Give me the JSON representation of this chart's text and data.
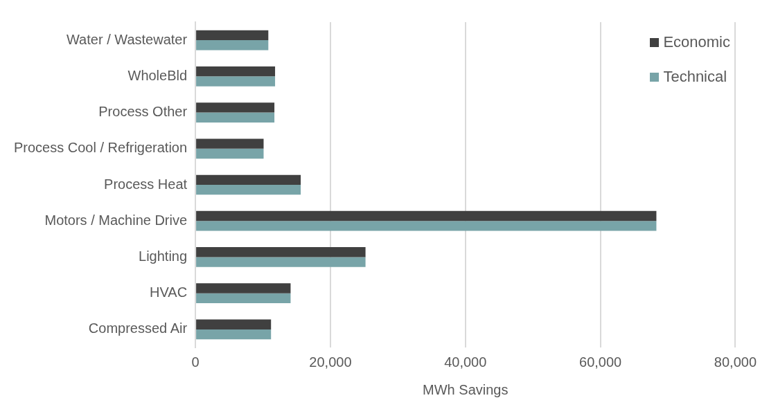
{
  "chart_data": {
    "type": "bar",
    "orientation": "horizontal",
    "xlabel": "MWh Savings",
    "categories": [
      "Water / Wastewater",
      "WholeBld",
      "Process Other",
      "Process Cool / Refrigeration",
      "Process Heat",
      "Motors / Machine Drive",
      "Lighting",
      "HVAC",
      "Compressed Air"
    ],
    "series": [
      {
        "name": "Economic",
        "color": "#404040",
        "values": [
          10800,
          11800,
          11700,
          10100,
          15600,
          68300,
          25200,
          14100,
          11200
        ]
      },
      {
        "name": "Technical",
        "color": "#78a4a8",
        "values": [
          10800,
          11800,
          11700,
          10100,
          15600,
          68300,
          25200,
          14100,
          11200
        ]
      }
    ],
    "xlim": [
      0,
      80000
    ],
    "xticks": [
      {
        "value": 0,
        "label": "0"
      },
      {
        "value": 20000,
        "label": "20,000"
      },
      {
        "value": 40000,
        "label": "40,000"
      },
      {
        "value": 60000,
        "label": "60,000"
      },
      {
        "value": 80000,
        "label": "80,000"
      }
    ],
    "grid": "x",
    "legend": "top right"
  }
}
